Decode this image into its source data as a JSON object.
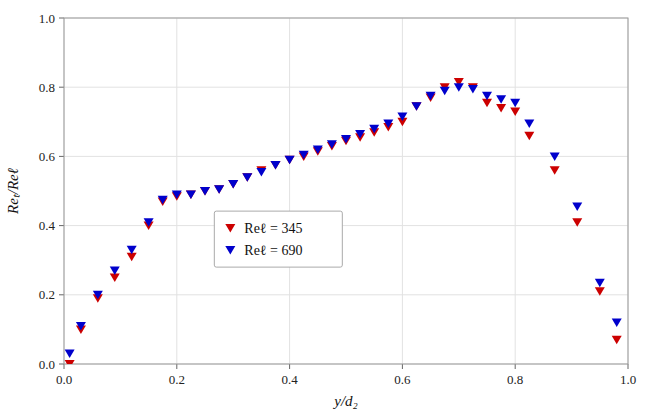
{
  "chart_data": {
    "type": "scatter",
    "xlabel": "y/d₂",
    "ylabel": "Reₜ/Reℓ",
    "x": [
      0.01,
      0.03,
      0.06,
      0.09,
      0.12,
      0.15,
      0.175,
      0.2,
      0.225,
      0.25,
      0.275,
      0.3,
      0.325,
      0.35,
      0.375,
      0.4,
      0.425,
      0.45,
      0.475,
      0.5,
      0.525,
      0.55,
      0.575,
      0.6,
      0.625,
      0.65,
      0.675,
      0.7,
      0.725,
      0.75,
      0.775,
      0.8,
      0.825,
      0.87,
      0.91,
      0.95,
      0.98
    ],
    "series": [
      {
        "name": "Reℓ = 345",
        "color": "#cc0000",
        "marker": "triangle-down",
        "values": [
          0.0,
          0.1,
          0.19,
          0.25,
          0.31,
          0.4,
          0.47,
          0.485,
          0.49,
          0.5,
          0.505,
          0.52,
          0.54,
          0.56,
          0.575,
          0.59,
          0.6,
          0.615,
          0.63,
          0.645,
          0.655,
          0.67,
          0.685,
          0.7,
          0.745,
          0.77,
          0.8,
          0.815,
          0.8,
          0.755,
          0.74,
          0.73,
          0.66,
          0.56,
          0.41,
          0.21,
          0.07
        ]
      },
      {
        "name": "Reℓ = 690",
        "color": "#0000cc",
        "marker": "triangle-down",
        "values": [
          0.03,
          0.11,
          0.2,
          0.27,
          0.33,
          0.41,
          0.475,
          0.49,
          0.49,
          0.5,
          0.505,
          0.52,
          0.54,
          0.555,
          0.575,
          0.59,
          0.605,
          0.62,
          0.635,
          0.65,
          0.665,
          0.68,
          0.695,
          0.715,
          0.745,
          0.775,
          0.79,
          0.8,
          0.795,
          0.775,
          0.765,
          0.755,
          0.695,
          0.6,
          0.455,
          0.235,
          0.12
        ]
      }
    ],
    "xlim": [
      0,
      1
    ],
    "ylim": [
      0,
      1
    ],
    "xticks": [
      {
        "value": 0,
        "label": "0.0"
      },
      0.2,
      0.4,
      0.6,
      0.8,
      {
        "value": 1.0,
        "label": "1.0"
      }
    ],
    "yticks": [
      {
        "value": 0,
        "label": "0.0"
      },
      0.2,
      0.4,
      0.6,
      0.8,
      {
        "value": 1.0,
        "label": "1.0"
      }
    ],
    "grid": true,
    "legend": "center"
  }
}
